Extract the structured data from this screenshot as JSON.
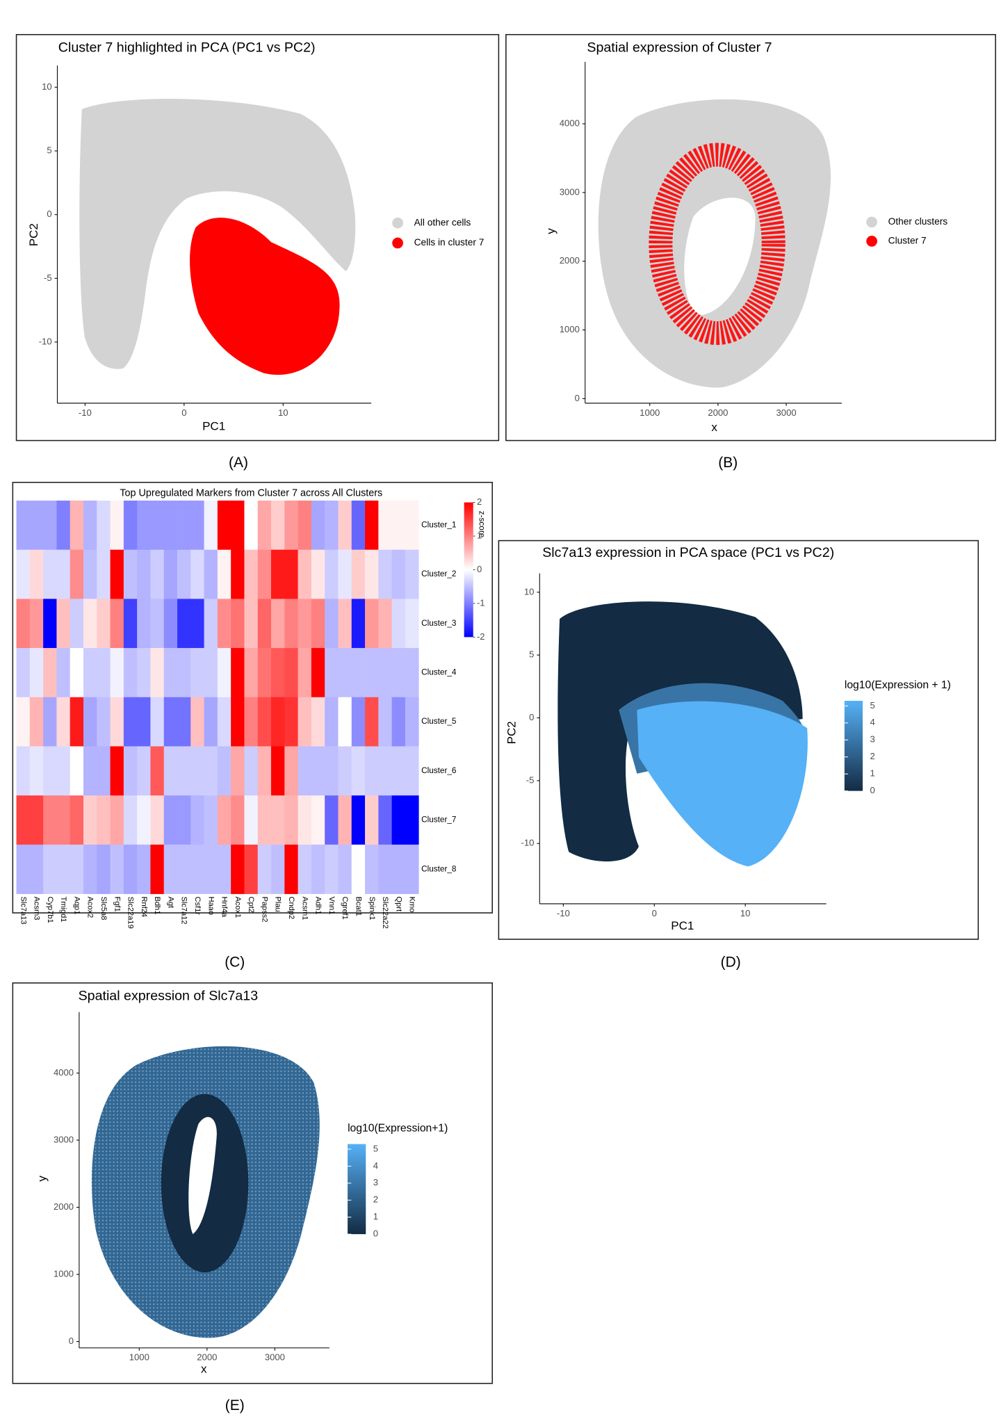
{
  "chart_data": [
    {
      "type": "scatter",
      "panel_label": "(A)",
      "title": "Cluster 7 highlighted in PCA (PC1 vs PC2)",
      "x_label": "PC1",
      "y_label": "PC2",
      "xlim": [
        -12.8,
        18.9
      ],
      "ylim": [
        -14.8,
        11.7
      ],
      "xticks": [
        -10,
        0,
        10
      ],
      "yticks": [
        -10,
        -5,
        0,
        5,
        10
      ],
      "series": [
        {
          "name": "All other cells",
          "color": "#d3d3d3"
        },
        {
          "name": "Cells in cluster 7",
          "color": "#ff0000"
        }
      ],
      "legend": "right"
    },
    {
      "type": "scatter",
      "panel_label": "(B)",
      "title": "Spatial expression of Cluster 7",
      "x_label": "x",
      "y_label": "y",
      "xlim": [
        53,
        3813
      ],
      "ylim": [
        -66,
        4901
      ],
      "xticks": [
        1000,
        2000,
        3000
      ],
      "yticks": [
        0,
        1000,
        2000,
        3000,
        4000
      ],
      "series": [
        {
          "name": "Other clusters",
          "color": "#d3d3d3"
        },
        {
          "name": "Cluster 7",
          "color": "#ff0000"
        }
      ],
      "legend": "right"
    },
    {
      "type": "heatmap",
      "panel_label": "(C)",
      "title": "Top Upregulated Markers from Cluster 7 across All Clusters",
      "x_categories": [
        "Slc7a13",
        "Acsm3",
        "Cyp7b1",
        "Tmigd1",
        "Aqp1",
        "Acox2",
        "Slc5a8",
        "Fgf1",
        "Slc22a19",
        "Rnf24",
        "Bdh1",
        "Agt",
        "Slc7a12",
        "Csf1r",
        "Haao",
        "Hnf4a",
        "Acox1",
        "Cpt2",
        "Papss2",
        "Plau",
        "Cndp2",
        "Acsm1",
        "Adh1",
        "Vnn1",
        "Cgref1",
        "Bcat1",
        "Spink1",
        "Slc22a22",
        "Qprt",
        "Kmo"
      ],
      "y_categories": [
        "Cluster_1",
        "Cluster_2",
        "Cluster_3",
        "Cluster_4",
        "Cluster_5",
        "Cluster_6",
        "Cluster_7",
        "Cluster_8"
      ],
      "values": [
        [
          -0.7,
          -0.7,
          -0.7,
          -1,
          0.6,
          -0.6,
          -0.3,
          0.1,
          -1,
          -0.8,
          -0.8,
          -0.8,
          -0.8,
          -0.8,
          -0.1,
          2,
          2,
          0,
          0.7,
          0.4,
          0.8,
          1,
          -0.7,
          -0.6,
          0.4,
          -1.2,
          2,
          0.1,
          0.1,
          0.1
        ],
        [
          -0.2,
          0.3,
          -0.3,
          -0.3,
          0.9,
          -0.5,
          -0.3,
          2,
          -0.5,
          -0.6,
          -0.4,
          -0.7,
          -0.5,
          -0.3,
          -0.6,
          0.1,
          2,
          0.5,
          0.9,
          1.8,
          1.8,
          0.5,
          0.2,
          -0.4,
          -0.2,
          0.4,
          0.2,
          -0.4,
          -0.5,
          -0.4
        ],
        [
          1,
          0.8,
          -2,
          0.5,
          -0.4,
          0.2,
          0.4,
          1,
          -1.5,
          -0.6,
          -0.5,
          -0.9,
          -1.6,
          -1.6,
          -0.4,
          0.9,
          1.1,
          0.5,
          1.2,
          0.7,
          1,
          0.8,
          1,
          -0.6,
          0.5,
          -1.8,
          0.8,
          0.6,
          -0.3,
          -0.2
        ],
        [
          -0.4,
          -0.2,
          0.5,
          -0.5,
          0,
          -0.4,
          -0.4,
          -0.1,
          -0.5,
          -0.4,
          0.2,
          -0.5,
          -0.5,
          -0.4,
          -0.4,
          -0.1,
          2,
          0.7,
          1.1,
          1.3,
          1.4,
          0.7,
          2,
          -0.5,
          -0.5,
          -0.5,
          -0.5,
          -0.5,
          -0.5,
          -0.5
        ],
        [
          0.1,
          0.6,
          -0.7,
          0.3,
          1.8,
          -0.7,
          -0.5,
          0.3,
          -1.2,
          -1.2,
          -0.3,
          -1.1,
          -1.1,
          0.5,
          -0.7,
          -0.3,
          2,
          1,
          1.4,
          1.7,
          1.6,
          0.5,
          0.3,
          -0.6,
          0,
          -0.9,
          1.4,
          -0.5,
          -0.9,
          -0.6
        ],
        [
          -0.3,
          -0.2,
          -0.3,
          -0.3,
          0,
          -0.6,
          -0.6,
          2,
          -0.5,
          -0.4,
          1.3,
          -0.4,
          -0.4,
          -0.4,
          -0.4,
          -0.5,
          0.7,
          -0.4,
          0.6,
          2,
          0.7,
          -0.5,
          -0.5,
          -0.5,
          -0.4,
          -0.3,
          -0.4,
          -0.4,
          -0.4,
          -0.4
        ],
        [
          1.5,
          1.5,
          1,
          1,
          1.2,
          0.4,
          0.5,
          0.7,
          -0.3,
          -0.1,
          0.3,
          -0.8,
          -0.8,
          -0.6,
          -0.5,
          0.7,
          0.9,
          -0.1,
          0.5,
          0.5,
          0.6,
          0.2,
          0.1,
          -1.2,
          0.6,
          -2,
          0.4,
          -1.2,
          -2,
          -2
        ],
        [
          -0.6,
          -0.6,
          -0.4,
          -0.4,
          -0.4,
          -0.6,
          -0.7,
          -0.5,
          -0.7,
          -0.6,
          2,
          -0.5,
          -0.5,
          -0.5,
          -0.5,
          -0.5,
          2,
          1.5,
          -0.4,
          -0.5,
          2,
          -0.4,
          -0.5,
          -0.4,
          -0.5,
          0,
          -0.5,
          -0.6,
          -0.6,
          -0.6
        ]
      ],
      "zlim": [
        -2,
        2
      ],
      "zticks": [
        2,
        1,
        0,
        -1,
        -2
      ],
      "colorbar_label": "z-score",
      "colors": [
        "#0000ff",
        "#ffffff",
        "#ff0000"
      ]
    },
    {
      "type": "scatter",
      "panel_label": "(D)",
      "title": "Slc7a13 expression in PCA space (PC1 vs PC2)",
      "x_label": "PC1",
      "y_label": "PC2",
      "xlim": [
        -12.6,
        18.9
      ],
      "ylim": [
        -14.8,
        11.5
      ],
      "xticks": [
        -10,
        0,
        10
      ],
      "yticks": [
        -10,
        -5,
        0,
        5,
        10
      ],
      "colorbar_label": "log10(Expression + 1)",
      "clim": [
        0,
        5.3
      ],
      "cticks": [
        0,
        1,
        2,
        3,
        4,
        5
      ],
      "colors": [
        "#132b43",
        "#56b1f7"
      ]
    },
    {
      "type": "scatter",
      "panel_label": "(E)",
      "title": "Spatial expression of Slc7a13",
      "x_label": "x",
      "y_label": "y",
      "xlim": [
        114,
        3805
      ],
      "ylim": [
        -95,
        4908
      ],
      "xticks": [
        1000,
        2000,
        3000
      ],
      "yticks": [
        0,
        1000,
        2000,
        3000,
        4000
      ],
      "colorbar_label": "log10(Expression+1)",
      "clim": [
        0,
        5.3
      ],
      "cticks": [
        0,
        1,
        2,
        3,
        4,
        5
      ],
      "colors": [
        "#132b43",
        "#56b1f7"
      ]
    }
  ]
}
